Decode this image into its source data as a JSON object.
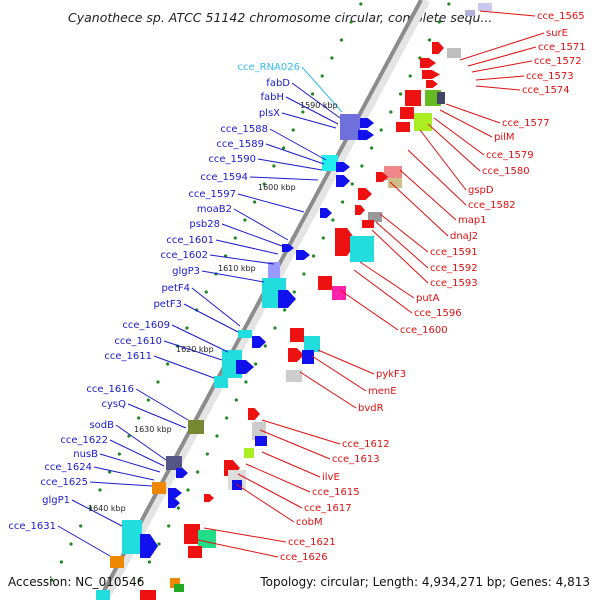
{
  "title": "Cyanothece sp. ATCC 51142 chromosome circular, complete sequ...",
  "accession": "Accession: NC_010546",
  "summary": "Topology: circular; Length: 4,934,271 bp; Genes: 4,813",
  "colors": {
    "backbone": "#8c8c8c",
    "left_strand_label": "#1a1acc",
    "right_strand_label": "#e01010",
    "rna_label": "#33bbee",
    "tick_mark": "#228822"
  },
  "ticks": [
    "1590 kbp",
    "1600 kbp",
    "1610 kbp",
    "1620 kbp",
    "1630 kbp",
    "1640 kbp"
  ],
  "left_labels": [
    "cce_RNA026",
    "fabD",
    "fabH",
    "plsX",
    "cce_1588",
    "cce_1589",
    "cce_1590",
    "cce_1594",
    "cce_1597",
    "moaB2",
    "psb28",
    "cce_1601",
    "cce_1602",
    "glgP3",
    "petF4",
    "petF3",
    "cce_1609",
    "cce_1610",
    "cce_1611",
    "cce_1616",
    "cysQ",
    "sodB",
    "cce_1622",
    "nusB",
    "cce_1624",
    "cce_1625",
    "glgP1",
    "cce_1631"
  ],
  "right_labels": [
    "cce_1565",
    "surE",
    "cce_1571",
    "cce_1572",
    "cce_1573",
    "cce_1574",
    "cce_1577",
    "pilM",
    "cce_1579",
    "cce_1580",
    "gspD",
    "cce_1582",
    "map1",
    "dnaJ2",
    "cce_1591",
    "cce_1592",
    "cce_1593",
    "putA",
    "cce_1596",
    "cce_1600",
    "pykF3",
    "menE",
    "bvdR",
    "cce_1612",
    "cce_1613",
    "ilvE",
    "cce_1615",
    "cce_1617",
    "cobM",
    "cce_1621",
    "cce_1626"
  ]
}
